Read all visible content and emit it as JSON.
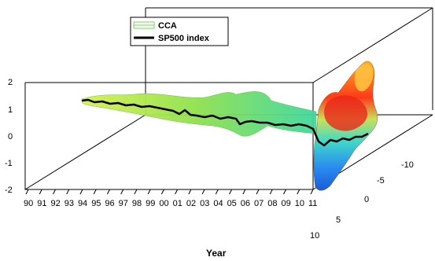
{
  "chart_data": {
    "type": "line",
    "title": "",
    "xlabel": "Year",
    "ylabel": "",
    "zlabel": "",
    "x_ticks": [
      "90",
      "91",
      "92",
      "93",
      "94",
      "95",
      "96",
      "97",
      "98",
      "99",
      "00",
      "01",
      "02",
      "03",
      "04",
      "05",
      "06",
      "07",
      "08",
      "09",
      "10",
      "11"
    ],
    "y_ticks": [
      "-10",
      "-5",
      "0",
      "5",
      "10"
    ],
    "z_ticks": [
      "2",
      "1",
      "0",
      "-1",
      "-2"
    ],
    "zlim": [
      -2,
      2
    ],
    "ylim": [
      -12,
      10
    ],
    "legend": {
      "placement": "top-left",
      "entries": [
        "CCA",
        "SP500 index"
      ]
    },
    "series": [
      {
        "name": "CCA",
        "color": "#7ad35a",
        "style": "surface",
        "x": [
          1994,
          1996,
          1998,
          2000,
          2002,
          2004,
          2006,
          2008,
          2010,
          2011
        ],
        "values": [
          1.2,
          1.1,
          1.0,
          0.9,
          0.85,
          0.8,
          0.75,
          0.7,
          0.6,
          0.5
        ]
      },
      {
        "name": "SP500 index",
        "color": "#000000",
        "style": "line",
        "x": [
          1994,
          1995,
          1996,
          1997,
          1998,
          1999,
          2000,
          2001,
          2002,
          2003,
          2004,
          2005,
          2006,
          2007,
          2008,
          2009,
          2010,
          2011
        ],
        "values": [
          1.2,
          1.15,
          1.1,
          1.05,
          1.0,
          0.95,
          0.9,
          0.85,
          0.75,
          0.75,
          0.7,
          0.7,
          0.65,
          0.6,
          0.45,
          0.35,
          0.4,
          0.3
        ]
      }
    ],
    "grid": false
  },
  "colors": {
    "axis": "#000000",
    "cca": "#7ad35a",
    "sp500": "#000000"
  }
}
